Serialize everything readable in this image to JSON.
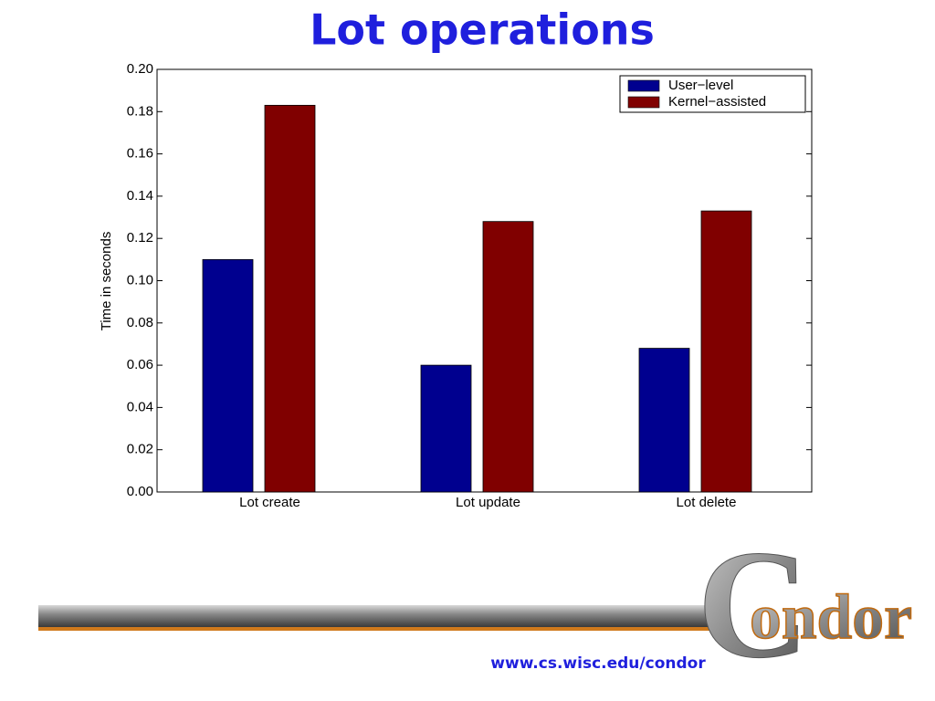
{
  "chart_data": {
    "type": "bar",
    "title": "Lot operations",
    "y_label": "Time in seconds",
    "categories": [
      "Lot create",
      "Lot update",
      "Lot delete"
    ],
    "series": [
      {
        "name": "User−level",
        "color": "#00008f",
        "values": [
          0.11,
          0.06,
          0.068
        ]
      },
      {
        "name": "Kernel−assisted",
        "color": "#800000",
        "values": [
          0.183,
          0.128,
          0.133
        ]
      }
    ],
    "ylim": [
      0,
      0.2
    ],
    "yticks": [
      {
        "value": 0,
        "label": "0.00"
      },
      {
        "value": 0.02,
        "label": "0.02"
      },
      {
        "value": 0.04,
        "label": "0.04"
      },
      {
        "value": 0.06,
        "label": "0.06"
      },
      {
        "value": 0.08,
        "label": "0.08"
      },
      {
        "value": 0.1,
        "label": "0.10"
      },
      {
        "value": 0.12,
        "label": "0.12"
      },
      {
        "value": 0.14,
        "label": "0.14"
      },
      {
        "value": 0.16,
        "label": "0.16"
      },
      {
        "value": 0.18,
        "label": "0.18"
      },
      {
        "value": 0.2,
        "label": "0.20"
      }
    ],
    "grid": false,
    "legend": "upper right"
  },
  "footer": {
    "url": "www.cs.wisc.edu/condor",
    "logo_initial": "C",
    "logo_rest": "ondor"
  }
}
